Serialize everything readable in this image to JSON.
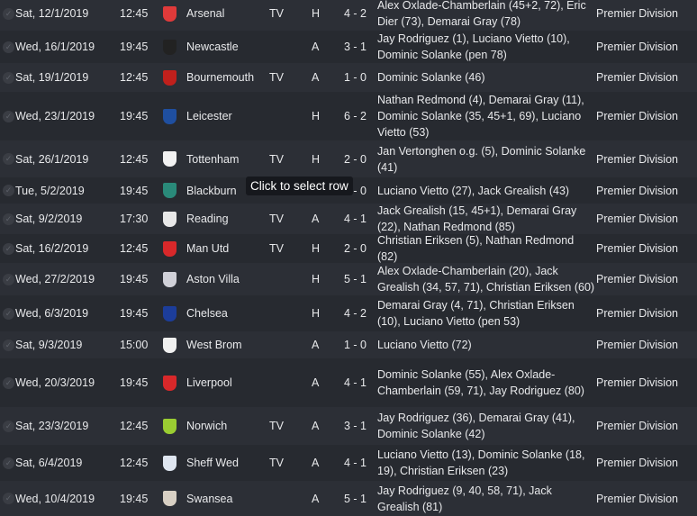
{
  "tooltip": "Click to select row",
  "fixtures": [
    {
      "date": "Sat, 12/1/2019",
      "time": "12:45",
      "team": "Arsenal",
      "badge": "#e03a3a",
      "tv": "TV",
      "venue": "H",
      "score": "4 - 2",
      "scorers": "Alex Oxlade-Chamberlain (45+2, 72), Eric Dier (73), Demarai Gray (78)",
      "competition": "Premier Division"
    },
    {
      "date": "Wed, 16/1/2019",
      "time": "19:45",
      "team": "Newcastle",
      "badge": "#222222",
      "tv": "",
      "venue": "A",
      "score": "3 - 1",
      "scorers": "Jay Rodriguez (1), Luciano Vietto (10), Dominic Solanke (pen 78)",
      "competition": "Premier Division"
    },
    {
      "date": "Sat, 19/1/2019",
      "time": "12:45",
      "team": "Bournemouth",
      "badge": "#c0201c",
      "tv": "TV",
      "venue": "A",
      "score": "1 - 0",
      "scorers": "Dominic Solanke (46)",
      "competition": "Premier Division"
    },
    {
      "date": "Wed, 23/1/2019",
      "time": "19:45",
      "team": "Leicester",
      "badge": "#1f4fa0",
      "tv": "",
      "venue": "H",
      "score": "6 - 2",
      "scorers": "Nathan Redmond (4), Demarai Gray (11), Dominic Solanke (35, 45+1, 69), Luciano Vietto (53)",
      "competition": "Premier Division"
    },
    {
      "date": "Sat, 26/1/2019",
      "time": "12:45",
      "team": "Tottenham",
      "badge": "#f2f2f2",
      "tv": "TV",
      "venue": "H",
      "score": "2 - 0",
      "scorers": "Jan Vertonghen o.g. (5), Dominic Solanke (41)",
      "competition": "Premier Division"
    },
    {
      "date": "Tue, 5/2/2019",
      "time": "19:45",
      "team": "Blackburn",
      "badge": "#2a8a7a",
      "tv": "",
      "venue": "",
      "score": "2 - 0",
      "scorers": "Luciano Vietto (27), Jack Grealish (43)",
      "competition": "Premier Division"
    },
    {
      "date": "Sat, 9/2/2019",
      "time": "17:30",
      "team": "Reading",
      "badge": "#e8e8e8",
      "tv": "TV",
      "venue": "A",
      "score": "4 - 1",
      "scorers": "Jack Grealish (15, 45+1), Demarai Gray (22), Nathan Redmond (85)",
      "competition": "Premier Division"
    },
    {
      "date": "Sat, 16/2/2019",
      "time": "12:45",
      "team": "Man Utd",
      "badge": "#d8282a",
      "tv": "TV",
      "venue": "H",
      "score": "2 - 0",
      "scorers": "Christian Eriksen (5), Nathan Redmond (82)",
      "competition": "Premier Division"
    },
    {
      "date": "Wed, 27/2/2019",
      "time": "19:45",
      "team": "Aston Villa",
      "badge": "#d0d0d8",
      "tv": "",
      "venue": "H",
      "score": "5 - 1",
      "scorers": "Alex Oxlade-Chamberlain (20), Jack Grealish (34, 57, 71), Christian Eriksen (60)",
      "competition": "Premier Division"
    },
    {
      "date": "Wed, 6/3/2019",
      "time": "19:45",
      "team": "Chelsea",
      "badge": "#1c3d9a",
      "tv": "",
      "venue": "H",
      "score": "4 - 2",
      "scorers": "Demarai Gray (4, 71), Christian Eriksen (10), Luciano Vietto (pen 53)",
      "competition": "Premier Division"
    },
    {
      "date": "Sat, 9/3/2019",
      "time": "15:00",
      "team": "West Brom",
      "badge": "#f0f0f0",
      "tv": "",
      "venue": "A",
      "score": "1 - 0",
      "scorers": "Luciano Vietto (72)",
      "competition": "Premier Division"
    },
    {
      "date": "Wed, 20/3/2019",
      "time": "19:45",
      "team": "Liverpool",
      "badge": "#d8282a",
      "tv": "",
      "venue": "A",
      "score": "4 - 1",
      "scorers": "Dominic Solanke (55), Alex Oxlade-Chamberlain (59, 71), Jay Rodriguez (80)",
      "competition": "Premier Division"
    },
    {
      "date": "Sat, 23/3/2019",
      "time": "12:45",
      "team": "Norwich",
      "badge": "#9acd32",
      "tv": "TV",
      "venue": "A",
      "score": "3 - 1",
      "scorers": "Jay Rodriguez (36), Demarai Gray (41), Dominic Solanke (42)",
      "competition": "Premier Division"
    },
    {
      "date": "Sat, 6/4/2019",
      "time": "12:45",
      "team": "Sheff Wed",
      "badge": "#dfe6f0",
      "tv": "TV",
      "venue": "A",
      "score": "4 - 1",
      "scorers": "Luciano Vietto (13), Dominic Solanke (18, 19), Christian Eriksen (23)",
      "competition": "Premier Division"
    },
    {
      "date": "Wed, 10/4/2019",
      "time": "19:45",
      "team": "Swansea",
      "badge": "#d8d0c4",
      "tv": "",
      "venue": "A",
      "score": "5 - 1",
      "scorers": "Jay Rodriguez (9, 40, 58, 71), Jack Grealish (81)",
      "competition": "Premier Division"
    }
  ]
}
